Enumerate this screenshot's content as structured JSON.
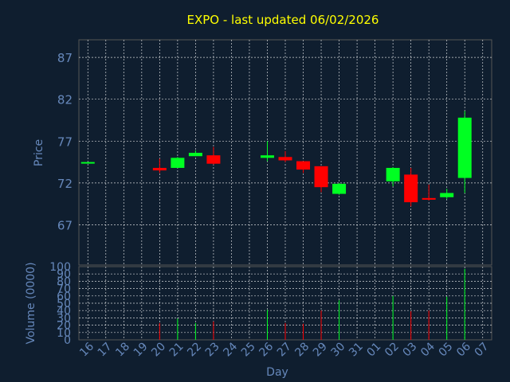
{
  "title": "EXPO - last updated 06/02/2026",
  "colors": {
    "background": "#0f1e2f",
    "plot_border": "#555555",
    "grid": "#ffffff",
    "title": "#ffff00",
    "axis_text": "#6688bb",
    "up": "#00ff22",
    "down": "#ff0000"
  },
  "chart_data": [
    {
      "type": "candlestick",
      "title": "EXPO - last updated 06/02/2026",
      "ylabel": "Price",
      "ylim": [
        62.2,
        89.1
      ],
      "yticks": [
        67,
        72,
        77,
        82,
        87
      ],
      "grid": true,
      "categories": [
        "16",
        "17",
        "18",
        "19",
        "20",
        "21",
        "22",
        "23",
        "24",
        "25",
        "26",
        "27",
        "28",
        "29",
        "30",
        "31",
        "01",
        "02",
        "03",
        "04",
        "05",
        "06",
        "07"
      ],
      "candles": [
        {
          "day": "16",
          "open": 74.5,
          "high": 74.5,
          "low": 74.5,
          "close": 74.5
        },
        {
          "day": "20",
          "open": 73.8,
          "high": 74.9,
          "low": 73.2,
          "close": 73.5
        },
        {
          "day": "21",
          "open": 73.8,
          "high": 75.1,
          "low": 73.8,
          "close": 75.0
        },
        {
          "day": "22",
          "open": 75.2,
          "high": 75.9,
          "low": 75.2,
          "close": 75.6
        },
        {
          "day": "23",
          "open": 75.3,
          "high": 76.3,
          "low": 74.2,
          "close": 74.3
        },
        {
          "day": "26",
          "open": 75.0,
          "high": 77.0,
          "low": 74.6,
          "close": 75.3
        },
        {
          "day": "27",
          "open": 75.1,
          "high": 75.8,
          "low": 74.5,
          "close": 74.7
        },
        {
          "day": "28",
          "open": 74.6,
          "high": 74.6,
          "low": 73.2,
          "close": 73.6
        },
        {
          "day": "29",
          "open": 74.0,
          "high": 74.0,
          "low": 70.9,
          "close": 71.5
        },
        {
          "day": "30",
          "open": 70.7,
          "high": 72.0,
          "low": 70.6,
          "close": 71.9
        },
        {
          "day": "02",
          "open": 72.2,
          "high": 73.9,
          "low": 71.6,
          "close": 73.8
        },
        {
          "day": "03",
          "open": 73.0,
          "high": 73.8,
          "low": 69.2,
          "close": 69.7
        },
        {
          "day": "04",
          "open": 70.2,
          "high": 71.8,
          "low": 69.9,
          "close": 70.0
        },
        {
          "day": "05",
          "open": 70.3,
          "high": 71.3,
          "low": 70.1,
          "close": 70.8
        },
        {
          "day": "06",
          "open": 72.6,
          "high": 80.6,
          "low": 70.8,
          "close": 79.8
        }
      ]
    },
    {
      "type": "bar",
      "ylabel": "Volume (0000)",
      "xlabel": "Day",
      "ylim": [
        0,
        100
      ],
      "yticks": [
        0,
        10,
        20,
        30,
        40,
        50,
        60,
        70,
        80,
        90,
        100
      ],
      "grid": true,
      "categories": [
        "16",
        "17",
        "18",
        "19",
        "20",
        "21",
        "22",
        "23",
        "24",
        "25",
        "26",
        "27",
        "28",
        "29",
        "30",
        "31",
        "01",
        "02",
        "03",
        "04",
        "05",
        "06",
        "07"
      ],
      "values": [
        {
          "day": "20",
          "volume": 23,
          "direction": "down"
        },
        {
          "day": "21",
          "volume": 29,
          "direction": "up"
        },
        {
          "day": "22",
          "volume": 23,
          "direction": "up"
        },
        {
          "day": "23",
          "volume": 25,
          "direction": "down"
        },
        {
          "day": "26",
          "volume": 41,
          "direction": "up"
        },
        {
          "day": "27",
          "volume": 23,
          "direction": "down"
        },
        {
          "day": "28",
          "volume": 22,
          "direction": "down"
        },
        {
          "day": "29",
          "volume": 40,
          "direction": "down"
        },
        {
          "day": "30",
          "volume": 54,
          "direction": "up"
        },
        {
          "day": "02",
          "volume": 60,
          "direction": "up"
        },
        {
          "day": "03",
          "volume": 39,
          "direction": "down"
        },
        {
          "day": "04",
          "volume": 40,
          "direction": "down"
        },
        {
          "day": "05",
          "volume": 59,
          "direction": "up"
        },
        {
          "day": "06",
          "volume": 97,
          "direction": "up"
        }
      ]
    }
  ]
}
